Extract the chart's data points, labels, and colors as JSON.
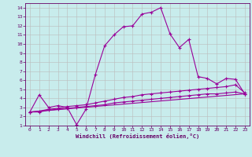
{
  "title": "",
  "xlabel": "Windchill (Refroidissement éolien,°C)",
  "bg_color": "#c8ecec",
  "line_color": "#990099",
  "xlim": [
    -0.5,
    23.5
  ],
  "ylim": [
    1,
    14.5
  ],
  "xticks": [
    0,
    1,
    2,
    3,
    4,
    5,
    6,
    7,
    8,
    9,
    10,
    11,
    12,
    13,
    14,
    15,
    16,
    17,
    18,
    19,
    20,
    21,
    22,
    23
  ],
  "yticks": [
    1,
    2,
    3,
    4,
    5,
    6,
    7,
    8,
    9,
    10,
    11,
    12,
    13,
    14
  ],
  "series1_x": [
    0,
    1,
    2,
    3,
    4,
    5,
    6,
    7,
    8,
    9,
    10,
    11,
    12,
    13,
    14,
    15,
    16,
    17,
    18,
    19,
    20,
    21,
    22,
    23
  ],
  "series1_y": [
    2.5,
    4.4,
    3.0,
    3.2,
    3.0,
    1.1,
    2.8,
    6.6,
    9.8,
    11.0,
    11.9,
    12.0,
    13.3,
    13.5,
    14.0,
    11.1,
    9.6,
    10.5,
    6.4,
    6.2,
    5.6,
    6.2,
    6.1,
    4.5
  ],
  "series2_x": [
    0,
    1,
    2,
    3,
    4,
    5,
    6,
    7,
    8,
    9,
    10,
    11,
    12,
    13,
    14,
    15,
    16,
    17,
    18,
    19,
    20,
    21,
    22,
    23
  ],
  "series2_y": [
    2.5,
    2.6,
    2.8,
    2.9,
    3.1,
    3.2,
    3.3,
    3.5,
    3.7,
    3.9,
    4.1,
    4.2,
    4.4,
    4.5,
    4.6,
    4.7,
    4.8,
    4.9,
    5.0,
    5.1,
    5.2,
    5.3,
    5.5,
    4.6
  ],
  "series3_x": [
    0,
    1,
    2,
    3,
    4,
    5,
    6,
    7,
    8,
    9,
    10,
    11,
    12,
    13,
    14,
    15,
    16,
    17,
    18,
    19,
    20,
    21,
    22,
    23
  ],
  "series3_y": [
    2.5,
    2.5,
    2.7,
    2.8,
    2.9,
    3.0,
    3.1,
    3.2,
    3.3,
    3.5,
    3.6,
    3.7,
    3.8,
    3.9,
    4.0,
    4.1,
    4.2,
    4.3,
    4.4,
    4.5,
    4.5,
    4.6,
    4.7,
    4.5
  ],
  "series4_x": [
    0,
    23
  ],
  "series4_y": [
    2.5,
    4.5
  ],
  "marker": "+",
  "markersize": 3,
  "linewidth": 0.8,
  "font_color": "#660066",
  "grid_color": "#bbbbbb",
  "tick_fontsize": 4.5,
  "xlabel_fontsize": 5.0
}
